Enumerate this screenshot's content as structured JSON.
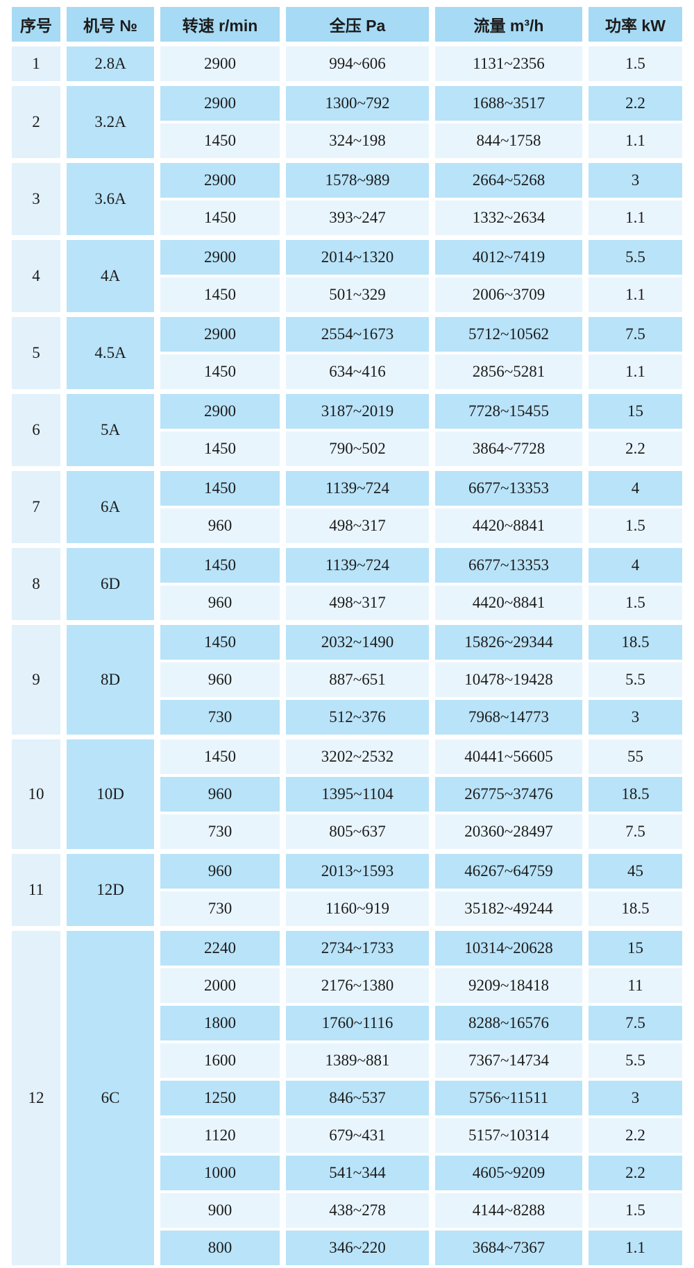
{
  "colors": {
    "header_bg": "#a7daf4",
    "stripe_medium": "#b9e3f8",
    "stripe_light": "#e9f5fd",
    "serial_col_bg": "#e3f1fb",
    "model_col_bg": "#b9e3f8",
    "gap": "#ffffff",
    "text": "#1b1b1b"
  },
  "table": {
    "headers": [
      "序号",
      "机号 №",
      "转速 r/min",
      "全压 Pa",
      "流量 m³/h",
      "功率 kW"
    ],
    "groups": [
      {
        "no": "1",
        "model": "2.8A",
        "rows": [
          [
            "2900",
            "994~606",
            "1131~2356",
            "1.5"
          ]
        ]
      },
      {
        "no": "2",
        "model": "3.2A",
        "rows": [
          [
            "2900",
            "1300~792",
            "1688~3517",
            "2.2"
          ],
          [
            "1450",
            "324~198",
            "844~1758",
            "1.1"
          ]
        ]
      },
      {
        "no": "3",
        "model": "3.6A",
        "rows": [
          [
            "2900",
            "1578~989",
            "2664~5268",
            "3"
          ],
          [
            "1450",
            "393~247",
            "1332~2634",
            "1.1"
          ]
        ]
      },
      {
        "no": "4",
        "model": "4A",
        "rows": [
          [
            "2900",
            "2014~1320",
            "4012~7419",
            "5.5"
          ],
          [
            "1450",
            "501~329",
            "2006~3709",
            "1.1"
          ]
        ]
      },
      {
        "no": "5",
        "model": "4.5A",
        "rows": [
          [
            "2900",
            "2554~1673",
            "5712~10562",
            "7.5"
          ],
          [
            "1450",
            "634~416",
            "2856~5281",
            "1.1"
          ]
        ]
      },
      {
        "no": "6",
        "model": "5A",
        "rows": [
          [
            "2900",
            "3187~2019",
            "7728~15455",
            "15"
          ],
          [
            "1450",
            "790~502",
            "3864~7728",
            "2.2"
          ]
        ]
      },
      {
        "no": "7",
        "model": "6A",
        "rows": [
          [
            "1450",
            "1139~724",
            "6677~13353",
            "4"
          ],
          [
            "960",
            "498~317",
            "4420~8841",
            "1.5"
          ]
        ]
      },
      {
        "no": "8",
        "model": "6D",
        "rows": [
          [
            "1450",
            "1139~724",
            "6677~13353",
            "4"
          ],
          [
            "960",
            "498~317",
            "4420~8841",
            "1.5"
          ]
        ]
      },
      {
        "no": "9",
        "model": "8D",
        "rows": [
          [
            "1450",
            "2032~1490",
            "15826~29344",
            "18.5"
          ],
          [
            "960",
            "887~651",
            "10478~19428",
            "5.5"
          ],
          [
            "730",
            "512~376",
            "7968~14773",
            "3"
          ]
        ]
      },
      {
        "no": "10",
        "model": "10D",
        "rows": [
          [
            "1450",
            "3202~2532",
            "40441~56605",
            "55"
          ],
          [
            "960",
            "1395~1104",
            "26775~37476",
            "18.5"
          ],
          [
            "730",
            "805~637",
            "20360~28497",
            "7.5"
          ]
        ]
      },
      {
        "no": "11",
        "model": "12D",
        "rows": [
          [
            "960",
            "2013~1593",
            "46267~64759",
            "45"
          ],
          [
            "730",
            "1160~919",
            "35182~49244",
            "18.5"
          ]
        ]
      },
      {
        "no": "12",
        "model": "6C",
        "rows": [
          [
            "2240",
            "2734~1733",
            "10314~20628",
            "15"
          ],
          [
            "2000",
            "2176~1380",
            "9209~18418",
            "11"
          ],
          [
            "1800",
            "1760~1116",
            "8288~16576",
            "7.5"
          ],
          [
            "1600",
            "1389~881",
            "7367~14734",
            "5.5"
          ],
          [
            "1250",
            "846~537",
            "5756~11511",
            "3"
          ],
          [
            "1120",
            "679~431",
            "5157~10314",
            "2.2"
          ],
          [
            "1000",
            "541~344",
            "4605~9209",
            "2.2"
          ],
          [
            "900",
            "438~278",
            "4144~8288",
            "1.5"
          ],
          [
            "800",
            "346~220",
            "3684~7367",
            "1.1"
          ]
        ]
      }
    ]
  }
}
